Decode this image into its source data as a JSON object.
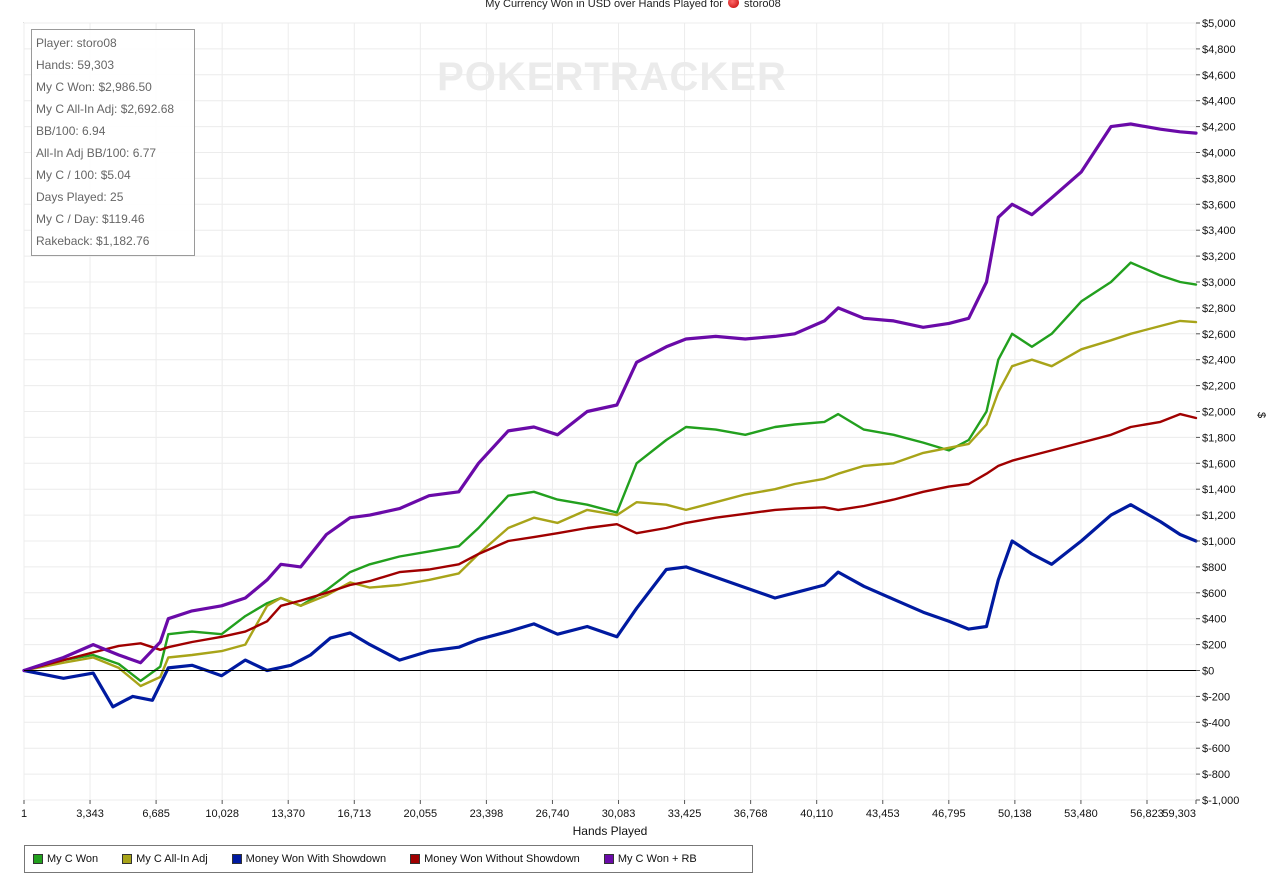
{
  "chart_data": {
    "type": "line",
    "title_prefix": "My Currency Won in USD over Hands Played for",
    "title_player": "storo08",
    "xlabel": "Hands Played",
    "ylabel": "$",
    "xlim": [
      1,
      59303
    ],
    "ylim": [
      -1000,
      5000
    ],
    "x_ticks": [
      1,
      3343,
      6685,
      10028,
      13370,
      16713,
      20055,
      23398,
      26740,
      30083,
      33425,
      36768,
      40110,
      43453,
      46795,
      50138,
      53480,
      56823,
      59303
    ],
    "x_tick_labels": [
      "1",
      "3,343",
      "6,685",
      "10,028",
      "13,370",
      "16,713",
      "20,055",
      "23,398",
      "26,740",
      "30,083",
      "33,425",
      "36,768",
      "40,110",
      "43,453",
      "46,795",
      "50,138",
      "53,480",
      "56,823",
      "59,303"
    ],
    "y_ticks": [
      5000,
      4800,
      4600,
      4400,
      4200,
      4000,
      3800,
      3600,
      3400,
      3200,
      3000,
      2800,
      2600,
      2400,
      2200,
      2000,
      1800,
      1600,
      1400,
      1200,
      1000,
      800,
      600,
      400,
      200,
      0,
      -200,
      -400,
      -600,
      -800,
      -1000
    ],
    "y_tick_labels": [
      "$5,000",
      "$4,800",
      "$4,600",
      "$4,400",
      "$4,200",
      "$4,000",
      "$3,800",
      "$3,600",
      "$3,400",
      "$3,200",
      "$3,000",
      "$2,800",
      "$2,600",
      "$2,400",
      "$2,200",
      "$2,000",
      "$1,800",
      "$1,600",
      "$1,400",
      "$1,200",
      "$1,000",
      "$800",
      "$600",
      "$400",
      "$200",
      "$0",
      "$-200",
      "$-400",
      "$-600",
      "$-800",
      "$-1,000"
    ],
    "grid": true,
    "legend_position": "bottom-left",
    "watermark": "POKERTRACKER",
    "series": [
      {
        "name": "My C Won",
        "color": "#22a01e",
        "x": [
          1,
          2000,
          3500,
          4800,
          5900,
          6900,
          7300,
          8500,
          10000,
          11200,
          12300,
          13000,
          14000,
          15300,
          16500,
          17500,
          19000,
          20500,
          22000,
          23000,
          24500,
          25800,
          27000,
          28500,
          30000,
          31000,
          32500,
          33500,
          35000,
          36500,
          38000,
          39000,
          40500,
          41200,
          42500,
          44000,
          45500,
          46800,
          47800,
          48700,
          49300,
          50000,
          51000,
          52000,
          53500,
          55000,
          56000,
          57500,
          58500,
          59303
        ],
        "y": [
          0,
          80,
          120,
          50,
          -80,
          30,
          280,
          300,
          280,
          420,
          520,
          560,
          500,
          620,
          760,
          820,
          880,
          920,
          960,
          1100,
          1350,
          1380,
          1320,
          1280,
          1220,
          1600,
          1780,
          1880,
          1860,
          1820,
          1880,
          1900,
          1920,
          1980,
          1860,
          1820,
          1760,
          1700,
          1780,
          2000,
          2400,
          2600,
          2500,
          2600,
          2850,
          3000,
          3150,
          3050,
          3000,
          2980
        ]
      },
      {
        "name": "My C All-In Adj",
        "color": "#a8a419",
        "x": [
          1,
          2000,
          3500,
          4800,
          5900,
          6900,
          7300,
          8500,
          10000,
          11200,
          12300,
          13000,
          14000,
          15300,
          16500,
          17500,
          19000,
          20500,
          22000,
          23000,
          24500,
          25800,
          27000,
          28500,
          30000,
          31000,
          32500,
          33500,
          35000,
          36500,
          38000,
          39000,
          40500,
          41200,
          42500,
          44000,
          45500,
          46800,
          47800,
          48700,
          49300,
          50000,
          51000,
          52000,
          53500,
          55000,
          56000,
          57500,
          58500,
          59303
        ],
        "y": [
          0,
          60,
          100,
          20,
          -120,
          -50,
          100,
          120,
          150,
          200,
          500,
          560,
          500,
          580,
          680,
          640,
          660,
          700,
          750,
          900,
          1100,
          1180,
          1140,
          1240,
          1200,
          1300,
          1280,
          1240,
          1300,
          1360,
          1400,
          1440,
          1480,
          1520,
          1580,
          1600,
          1680,
          1720,
          1750,
          1900,
          2150,
          2350,
          2400,
          2350,
          2480,
          2550,
          2600,
          2660,
          2700,
          2690
        ]
      },
      {
        "name": "Money Won With Showdown",
        "color": "#001aa0",
        "x": [
          1,
          2000,
          3500,
          4500,
          5500,
          6500,
          7300,
          8500,
          10000,
          11200,
          12300,
          13500,
          14500,
          15500,
          16500,
          17500,
          19000,
          20500,
          22000,
          23000,
          24500,
          25800,
          27000,
          28500,
          30000,
          31000,
          32500,
          33500,
          35000,
          36500,
          38000,
          39000,
          40500,
          41200,
          42500,
          44000,
          45500,
          46800,
          47800,
          48700,
          49300,
          50000,
          51000,
          52000,
          53500,
          55000,
          56000,
          57500,
          58500,
          59303
        ],
        "y": [
          0,
          -60,
          -20,
          -280,
          -200,
          -230,
          20,
          40,
          -40,
          80,
          0,
          40,
          120,
          250,
          290,
          200,
          80,
          150,
          180,
          240,
          300,
          360,
          280,
          340,
          260,
          480,
          780,
          800,
          720,
          640,
          560,
          600,
          660,
          760,
          650,
          550,
          450,
          380,
          320,
          340,
          700,
          1000,
          900,
          820,
          1000,
          1200,
          1280,
          1150,
          1050,
          1000
        ]
      },
      {
        "name": "Money Won Without Showdown",
        "color": "#a00000",
        "x": [
          1,
          2000,
          3500,
          4800,
          5900,
          6900,
          7300,
          8500,
          10000,
          11200,
          12300,
          13000,
          14000,
          15300,
          16500,
          17500,
          19000,
          20500,
          22000,
          23000,
          24500,
          25800,
          27000,
          28500,
          30000,
          31000,
          32500,
          33500,
          35000,
          36500,
          38000,
          39000,
          40500,
          41200,
          42500,
          44000,
          45500,
          46800,
          47800,
          48700,
          49300,
          50000,
          51000,
          52000,
          53500,
          55000,
          56000,
          57500,
          58500,
          59303
        ],
        "y": [
          0,
          80,
          140,
          190,
          210,
          160,
          180,
          220,
          260,
          300,
          380,
          500,
          540,
          600,
          660,
          690,
          760,
          780,
          820,
          900,
          1000,
          1030,
          1060,
          1100,
          1130,
          1060,
          1100,
          1140,
          1180,
          1210,
          1240,
          1250,
          1260,
          1240,
          1270,
          1320,
          1380,
          1420,
          1440,
          1520,
          1580,
          1620,
          1660,
          1700,
          1760,
          1820,
          1880,
          1920,
          1980,
          1950
        ]
      },
      {
        "name": "My C Won + RB",
        "color": "#6a0aa8",
        "x": [
          1,
          2000,
          3500,
          4800,
          5900,
          6900,
          7300,
          8500,
          10000,
          11200,
          12300,
          13000,
          14000,
          15300,
          16500,
          17500,
          19000,
          20500,
          22000,
          23000,
          24500,
          25800,
          27000,
          28500,
          30000,
          31000,
          32500,
          33500,
          35000,
          36500,
          38000,
          39000,
          40500,
          41200,
          42500,
          44000,
          45500,
          46800,
          47800,
          48700,
          49300,
          50000,
          51000,
          52000,
          53500,
          55000,
          56000,
          57500,
          58500,
          59303
        ],
        "y": [
          0,
          100,
          200,
          120,
          60,
          220,
          400,
          460,
          500,
          560,
          700,
          820,
          800,
          1050,
          1180,
          1200,
          1250,
          1350,
          1380,
          1600,
          1850,
          1880,
          1820,
          2000,
          2050,
          2380,
          2500,
          2560,
          2580,
          2560,
          2580,
          2600,
          2700,
          2800,
          2720,
          2700,
          2650,
          2680,
          2720,
          3000,
          3500,
          3600,
          3520,
          3650,
          3850,
          4200,
          4220,
          4180,
          4160,
          4150
        ]
      }
    ]
  },
  "stats": [
    "Player: storo08",
    "Hands: 59,303",
    "My C Won: $2,986.50",
    "My C All-In Adj: $2,692.68",
    "BB/100: 6.94",
    "All-In Adj BB/100: 6.77",
    "My C / 100: $5.04",
    "Days Played: 25",
    "My C / Day: $119.46",
    "Rakeback: $1,182.76"
  ]
}
